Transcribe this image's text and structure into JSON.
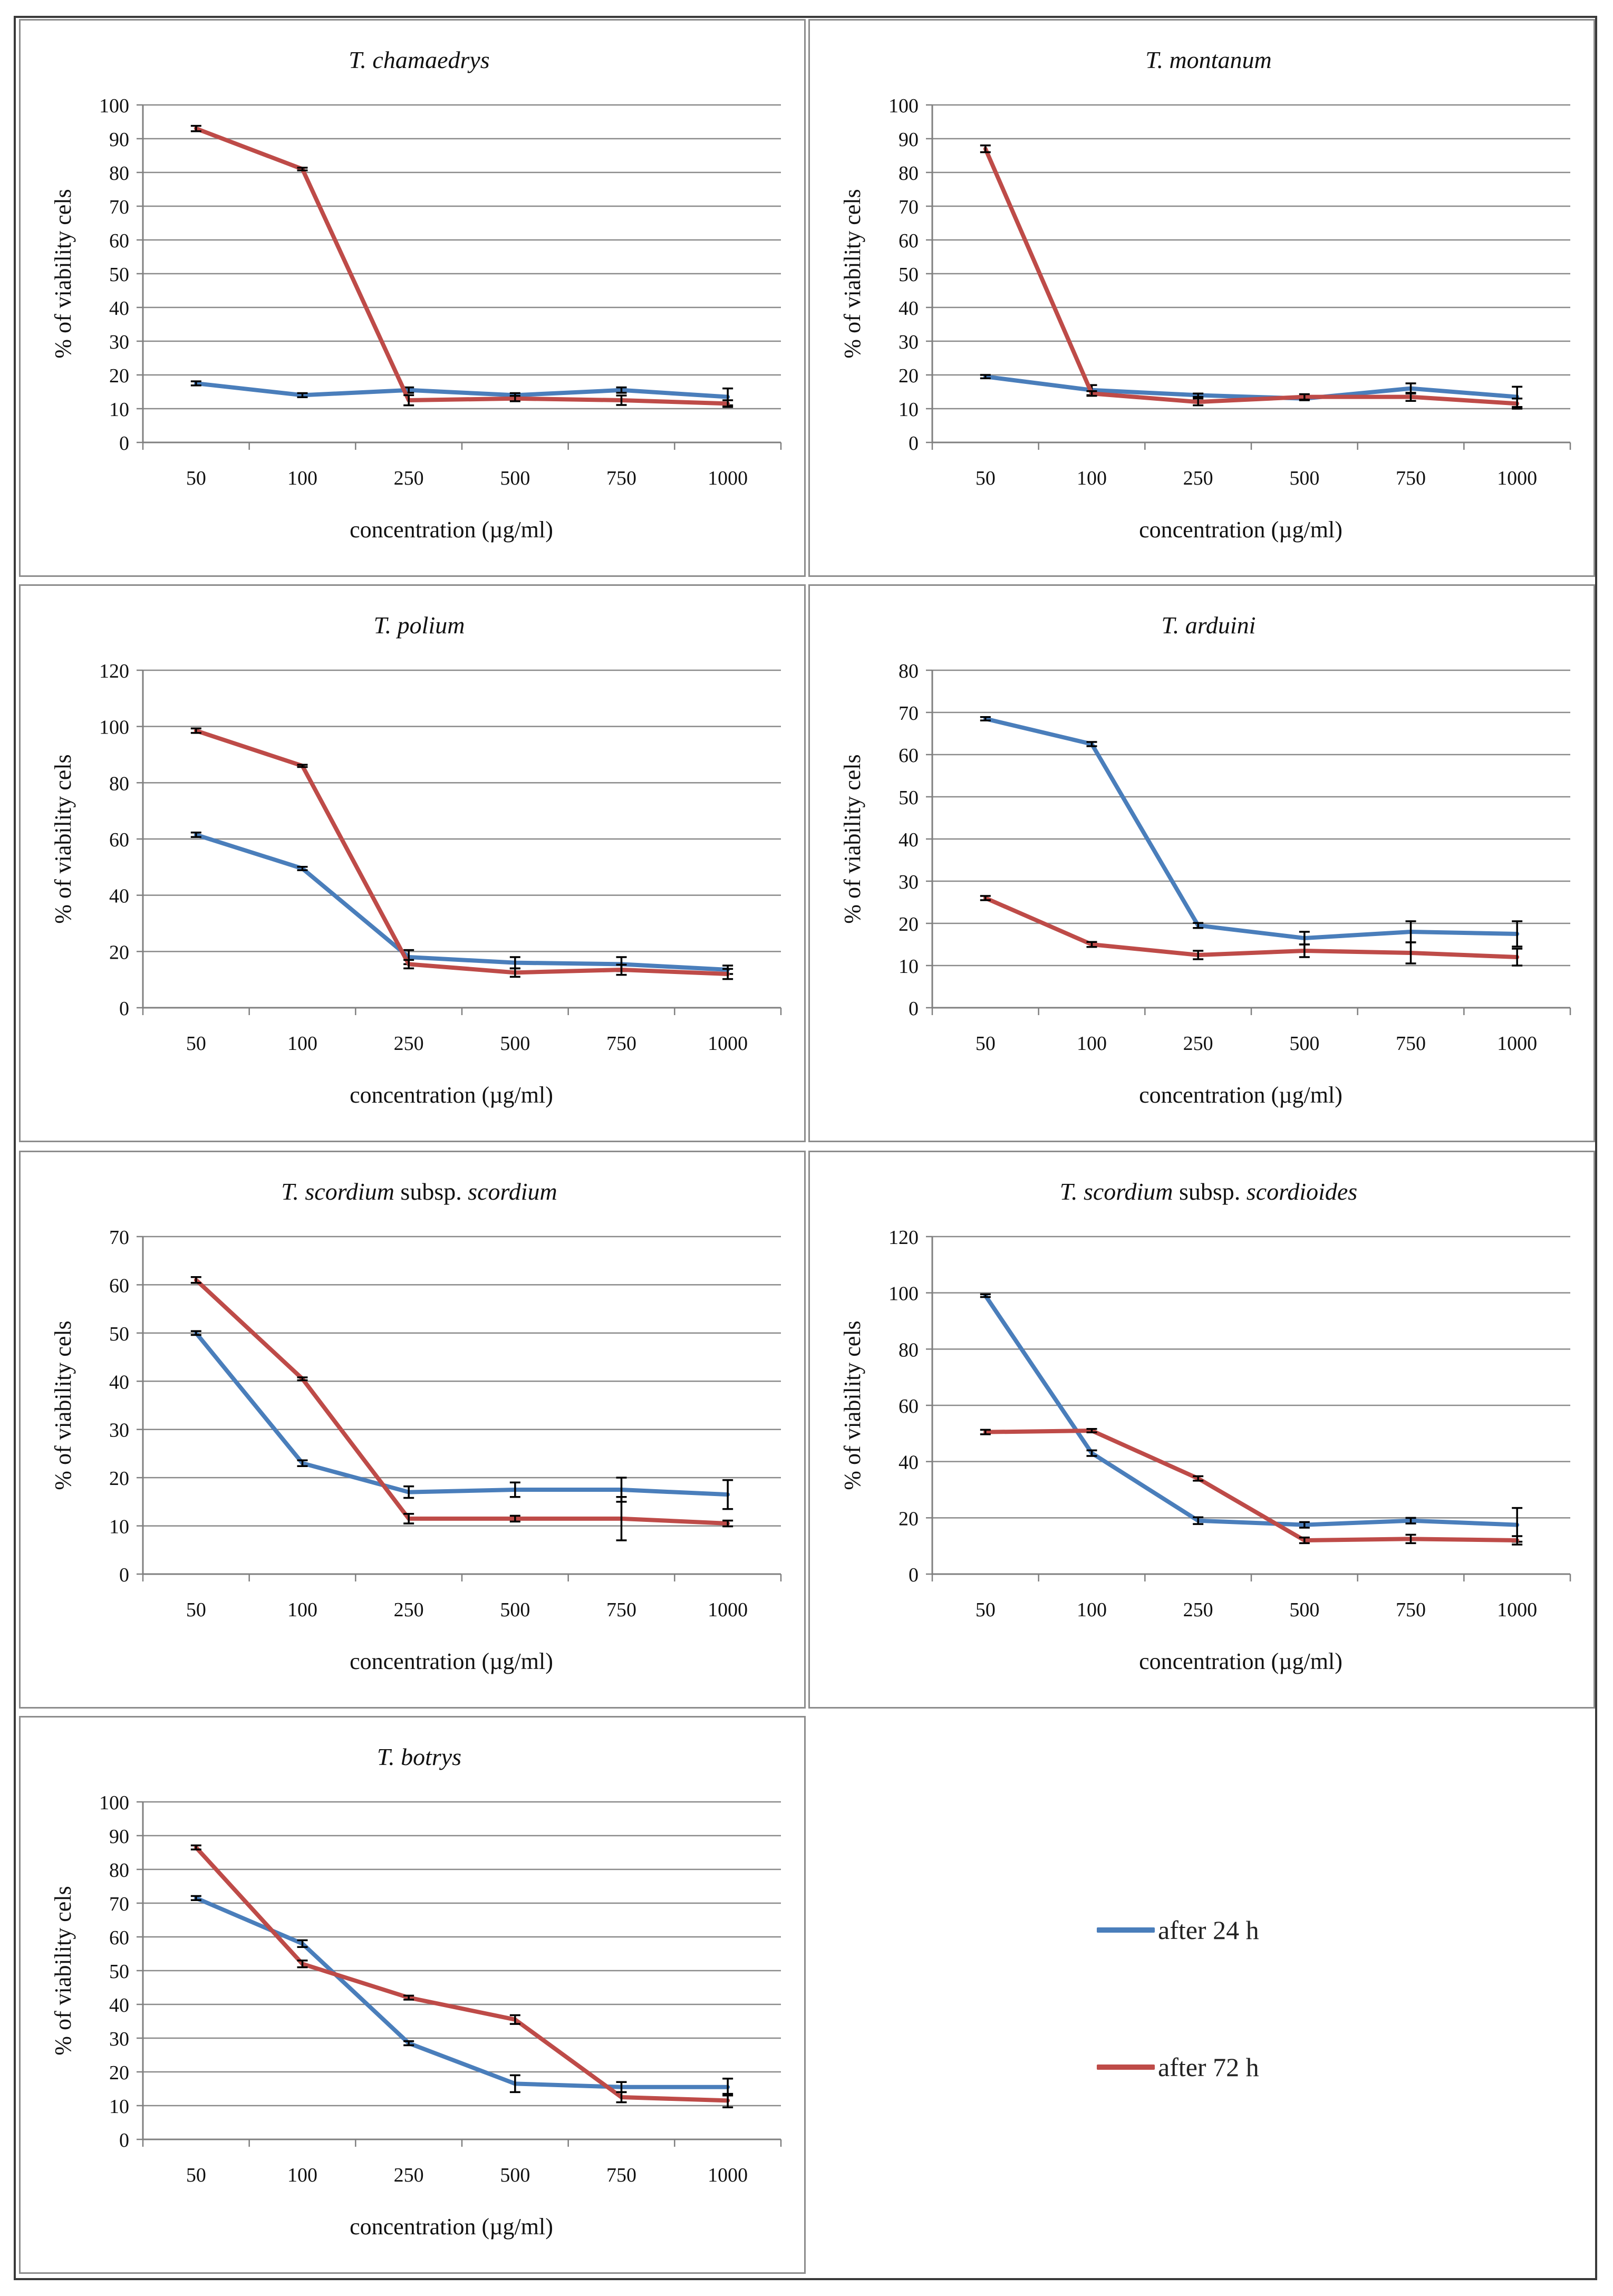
{
  "colors": {
    "series_24h": "#4a7ebb",
    "series_72h": "#be4b48",
    "grid": "#8a8a8a",
    "axis": "#7f7f7f"
  },
  "legend": {
    "items": [
      "after 24 h",
      "after 72 h"
    ]
  },
  "chart_data": [
    {
      "type": "line",
      "title_italic": "T. chamaedrys",
      "title_rest": "",
      "title_italic2": "",
      "xlabel": "concentration (µg/ml)",
      "ylabel": "%  of viability cels",
      "categories": [
        "50",
        "100",
        "250",
        "500",
        "750",
        "1000"
      ],
      "ylim": [
        0,
        100
      ],
      "ystep": 10,
      "grid": true,
      "series": [
        {
          "name": "after 24 h",
          "values": [
            17.5,
            14,
            15.5,
            14,
            15.5,
            13.5
          ],
          "errors": [
            0.6,
            0.6,
            0.8,
            0.6,
            0.8,
            2.5
          ]
        },
        {
          "name": "after 72 h",
          "values": [
            93,
            81,
            12.5,
            13,
            12.5,
            11.5
          ],
          "errors": [
            0.8,
            0.4,
            1.5,
            0.8,
            1.4,
            1
          ]
        }
      ]
    },
    {
      "type": "line",
      "title_italic": "T. montanum",
      "title_rest": "",
      "title_italic2": "",
      "xlabel": "concentration (µg/ml)",
      "ylabel": "%  of viability cels",
      "categories": [
        "50",
        "100",
        "250",
        "500",
        "750",
        "1000"
      ],
      "ylim": [
        0,
        100
      ],
      "ystep": 10,
      "grid": true,
      "series": [
        {
          "name": "after 24 h",
          "values": [
            19.5,
            15.5,
            14,
            13,
            16,
            13.5
          ],
          "errors": [
            0.5,
            1.5,
            0.5,
            0.5,
            1.5,
            3
          ]
        },
        {
          "name": "after 72 h",
          "values": [
            87,
            14.5,
            12,
            13.5,
            13.5,
            11.5
          ],
          "errors": [
            1,
            0.7,
            1,
            0.8,
            1.2,
            1.5
          ]
        }
      ]
    },
    {
      "type": "line",
      "title_italic": "T. polium",
      "title_rest": "",
      "title_italic2": "",
      "xlabel": "concentration (µg/ml)",
      "ylabel": "%  of viability cels",
      "categories": [
        "50",
        "100",
        "250",
        "500",
        "750",
        "1000"
      ],
      "ylim": [
        0,
        120
      ],
      "ystep": 20,
      "grid": true,
      "series": [
        {
          "name": "after 24 h",
          "values": [
            61.5,
            49.5,
            18,
            16,
            15.5,
            13.5
          ],
          "errors": [
            0.8,
            0.6,
            2.5,
            2,
            2.5,
            1.5
          ]
        },
        {
          "name": "after 72 h",
          "values": [
            98.5,
            86,
            15.5,
            12.5,
            13.5,
            12
          ],
          "errors": [
            0.8,
            0.4,
            1.5,
            1.5,
            1.8,
            1.8
          ]
        }
      ]
    },
    {
      "type": "line",
      "title_italic": "T. arduini",
      "title_rest": "",
      "title_italic2": "",
      "xlabel": "concentration (µg/ml)",
      "ylabel": "%  of viability cels",
      "categories": [
        "50",
        "100",
        "250",
        "500",
        "750",
        "1000"
      ],
      "ylim": [
        0,
        80
      ],
      "ystep": 10,
      "grid": true,
      "series": [
        {
          "name": "after 24 h",
          "values": [
            68.5,
            62.5,
            19.5,
            16.5,
            18,
            17.5
          ],
          "errors": [
            0.4,
            0.5,
            0.6,
            1.5,
            2.5,
            3
          ]
        },
        {
          "name": "after 72 h",
          "values": [
            26,
            15,
            12.5,
            13.5,
            13,
            12
          ],
          "errors": [
            0.5,
            0.6,
            1,
            1.5,
            2.5,
            2
          ]
        }
      ]
    },
    {
      "type": "line",
      "title_italic": "T. scordium",
      "title_rest": " subsp. ",
      "title_italic2": "scordium",
      "xlabel": "concentration (µg/ml)",
      "ylabel": "%  of viability cels",
      "categories": [
        "50",
        "100",
        "250",
        "500",
        "750",
        "1000"
      ],
      "ylim": [
        0,
        70
      ],
      "ystep": 10,
      "grid": true,
      "series": [
        {
          "name": "after 24 h",
          "values": [
            50,
            23,
            17,
            17.5,
            17.5,
            16.5
          ],
          "errors": [
            0.4,
            0.6,
            1.2,
            1.5,
            2.5,
            3
          ]
        },
        {
          "name": "after 72 h",
          "values": [
            61,
            40.5,
            11.5,
            11.5,
            11.5,
            10.5
          ],
          "errors": [
            0.6,
            0.3,
            1,
            0.6,
            4.5,
            0.6
          ]
        }
      ]
    },
    {
      "type": "line",
      "title_italic": "T. scordium",
      "title_rest": " subsp. ",
      "title_italic2": "scordioides",
      "xlabel": "concentration (µg/ml)",
      "ylabel": "%  of viability cels",
      "categories": [
        "50",
        "100",
        "250",
        "500",
        "750",
        "1000"
      ],
      "ylim": [
        0,
        120
      ],
      "ystep": 20,
      "grid": true,
      "series": [
        {
          "name": "after 24 h",
          "values": [
            99,
            43,
            19,
            17.5,
            19,
            17.5
          ],
          "errors": [
            0.5,
            1,
            1.2,
            1,
            1,
            6
          ]
        },
        {
          "name": "after 72 h",
          "values": [
            50.5,
            51,
            34,
            12,
            12.5,
            12
          ],
          "errors": [
            0.8,
            0.6,
            0.8,
            1,
            1.5,
            1.5
          ]
        }
      ]
    },
    {
      "type": "line",
      "title_italic": "T. botrys",
      "title_rest": "",
      "title_italic2": "",
      "xlabel": "concentration (µg/ml)",
      "ylabel": "%  of viability cels",
      "categories": [
        "50",
        "100",
        "250",
        "500",
        "750",
        "1000"
      ],
      "ylim": [
        0,
        100
      ],
      "ystep": 10,
      "grid": true,
      "series": [
        {
          "name": "after 24 h",
          "values": [
            71.5,
            58,
            28.5,
            16.5,
            15.5,
            15.5
          ],
          "errors": [
            0.6,
            1,
            0.6,
            2.5,
            1.5,
            2.5
          ]
        },
        {
          "name": "after 72 h",
          "values": [
            86.5,
            52,
            42,
            35.5,
            12.5,
            11.5
          ],
          "errors": [
            0.6,
            1,
            0.6,
            1.3,
            1.5,
            2
          ]
        }
      ]
    }
  ]
}
